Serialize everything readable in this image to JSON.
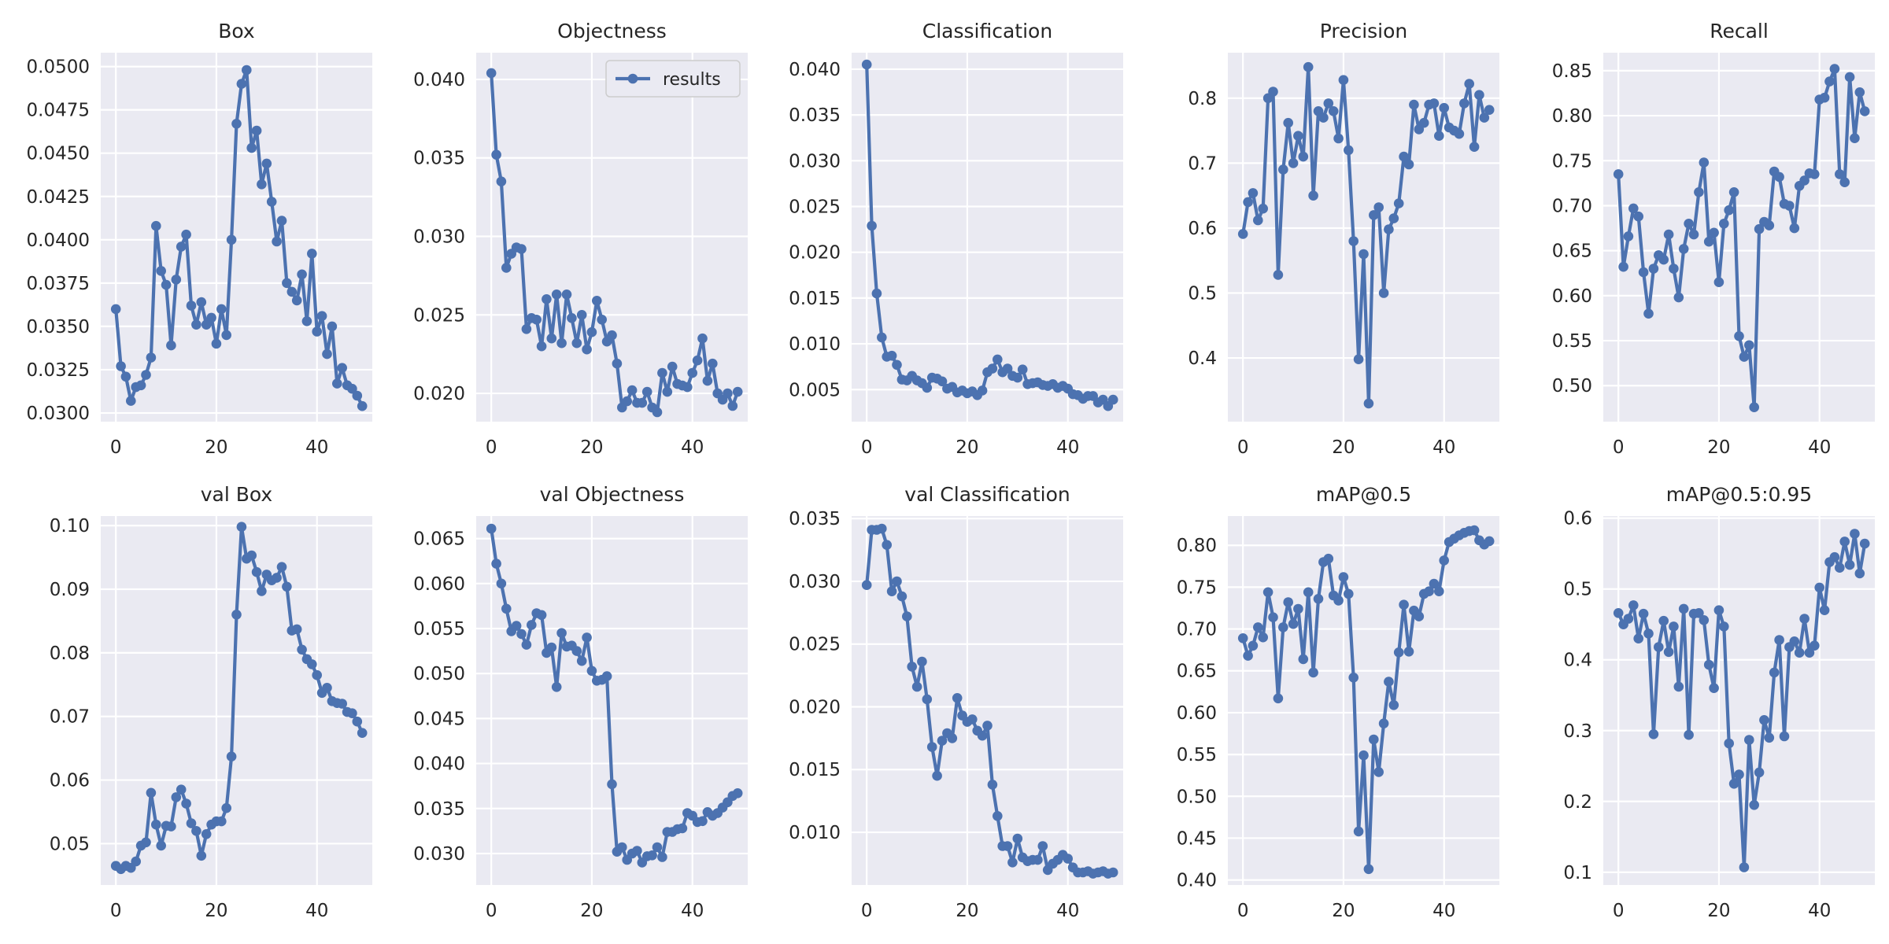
{
  "series_color": "#4c72b0",
  "background_color": "#eaeaf2",
  "grid_color": "#ffffff",
  "chart_data": [
    {
      "type": "line",
      "title": "Box",
      "series_name": "results",
      "legend": null,
      "xlim": [
        -3,
        51
      ],
      "ylim": [
        0.0295,
        0.0508
      ],
      "xticks": [
        0,
        20,
        40
      ],
      "xtick_labels": [
        "0",
        "20",
        "40"
      ],
      "yticks": [
        0.03,
        0.0325,
        0.035,
        0.0375,
        0.04,
        0.0425,
        0.045,
        0.0475,
        0.05
      ],
      "ytick_labels": [
        "0.0300",
        "0.0325",
        "0.0350",
        "0.0375",
        "0.0400",
        "0.0425",
        "0.0450",
        "0.0475",
        "0.0500"
      ],
      "values": [
        0.036,
        0.0327,
        0.0321,
        0.0307,
        0.0315,
        0.0316,
        0.0322,
        0.0332,
        0.0408,
        0.0382,
        0.0374,
        0.0339,
        0.0377,
        0.0396,
        0.0403,
        0.0362,
        0.0351,
        0.0364,
        0.0351,
        0.0355,
        0.034,
        0.036,
        0.0345,
        0.04,
        0.0467,
        0.049,
        0.0498,
        0.0453,
        0.0463,
        0.0432,
        0.0444,
        0.0422,
        0.0399,
        0.0411,
        0.0375,
        0.037,
        0.0365,
        0.038,
        0.0353,
        0.0392,
        0.0347,
        0.0356,
        0.0334,
        0.035,
        0.0317,
        0.0326,
        0.0316,
        0.0314,
        0.031,
        0.0304
      ]
    },
    {
      "type": "line",
      "title": "Objectness",
      "series_name": "results",
      "legend": "top-right",
      "xlim": [
        -3,
        51
      ],
      "ylim": [
        0.0182,
        0.0417
      ],
      "xticks": [
        0,
        20,
        40
      ],
      "xtick_labels": [
        "0",
        "20",
        "40"
      ],
      "yticks": [
        0.02,
        0.025,
        0.03,
        0.035,
        0.04
      ],
      "ytick_labels": [
        "0.020",
        "0.025",
        "0.030",
        "0.035",
        "0.040"
      ],
      "values": [
        0.0404,
        0.0352,
        0.0335,
        0.028,
        0.0289,
        0.0293,
        0.0292,
        0.0241,
        0.0248,
        0.0247,
        0.023,
        0.026,
        0.0235,
        0.0263,
        0.0232,
        0.0263,
        0.0248,
        0.0232,
        0.025,
        0.0228,
        0.0239,
        0.0259,
        0.0247,
        0.0233,
        0.0237,
        0.0219,
        0.0191,
        0.0195,
        0.0202,
        0.0194,
        0.0194,
        0.0201,
        0.0191,
        0.0188,
        0.0213,
        0.0201,
        0.0217,
        0.0206,
        0.0205,
        0.0204,
        0.0213,
        0.0221,
        0.0235,
        0.0208,
        0.0219,
        0.02,
        0.0196,
        0.02,
        0.0192,
        0.0201
      ]
    },
    {
      "type": "line",
      "title": "Classification",
      "series_name": "results",
      "legend": null,
      "xlim": [
        -3,
        51
      ],
      "ylim": [
        0.0015,
        0.0418
      ],
      "xticks": [
        0,
        20,
        40
      ],
      "xtick_labels": [
        "0",
        "20",
        "40"
      ],
      "yticks": [
        0.005,
        0.01,
        0.015,
        0.02,
        0.025,
        0.03,
        0.035,
        0.04
      ],
      "ytick_labels": [
        "0.005",
        "0.010",
        "0.015",
        "0.020",
        "0.025",
        "0.030",
        "0.035",
        "0.040"
      ],
      "values": [
        0.0405,
        0.0229,
        0.0155,
        0.0107,
        0.0086,
        0.0087,
        0.0077,
        0.0061,
        0.006,
        0.0065,
        0.006,
        0.0057,
        0.0052,
        0.0063,
        0.0062,
        0.0059,
        0.0051,
        0.0053,
        0.0047,
        0.0049,
        0.0046,
        0.0048,
        0.0044,
        0.0049,
        0.0069,
        0.0073,
        0.0083,
        0.0069,
        0.0073,
        0.0065,
        0.0063,
        0.0072,
        0.0056,
        0.0057,
        0.0058,
        0.0055,
        0.0054,
        0.0056,
        0.0052,
        0.0054,
        0.0051,
        0.0045,
        0.0044,
        0.004,
        0.0043,
        0.0043,
        0.0036,
        0.0039,
        0.0032,
        0.0039
      ]
    },
    {
      "type": "line",
      "title": "Precision",
      "series_name": "results",
      "legend": null,
      "xlim": [
        -3,
        51
      ],
      "ylim": [
        0.302,
        0.87
      ],
      "xticks": [
        0,
        20,
        40
      ],
      "xtick_labels": [
        "0",
        "20",
        "40"
      ],
      "yticks": [
        0.4,
        0.5,
        0.6,
        0.7,
        0.8
      ],
      "ytick_labels": [
        "0.4",
        "0.5",
        "0.6",
        "0.7",
        "0.8"
      ],
      "values": [
        0.591,
        0.64,
        0.654,
        0.612,
        0.63,
        0.8,
        0.81,
        0.528,
        0.69,
        0.762,
        0.7,
        0.742,
        0.71,
        0.848,
        0.65,
        0.78,
        0.77,
        0.792,
        0.78,
        0.738,
        0.828,
        0.72,
        0.58,
        0.398,
        0.56,
        0.33,
        0.62,
        0.632,
        0.5,
        0.598,
        0.615,
        0.638,
        0.71,
        0.698,
        0.79,
        0.752,
        0.762,
        0.79,
        0.792,
        0.742,
        0.785,
        0.755,
        0.75,
        0.745,
        0.792,
        0.822,
        0.725,
        0.805,
        0.77,
        0.782
      ]
    },
    {
      "type": "line",
      "title": "Recall",
      "series_name": "results",
      "legend": null,
      "xlim": [
        -3,
        51
      ],
      "ylim": [
        0.46,
        0.87
      ],
      "xticks": [
        0,
        20,
        40
      ],
      "xtick_labels": [
        "0",
        "20",
        "40"
      ],
      "yticks": [
        0.5,
        0.55,
        0.6,
        0.65,
        0.7,
        0.75,
        0.8,
        0.85
      ],
      "ytick_labels": [
        "0.50",
        "0.55",
        "0.60",
        "0.65",
        "0.70",
        "0.75",
        "0.80",
        "0.85"
      ],
      "values": [
        0.735,
        0.632,
        0.666,
        0.697,
        0.688,
        0.626,
        0.58,
        0.63,
        0.645,
        0.64,
        0.668,
        0.63,
        0.598,
        0.652,
        0.68,
        0.668,
        0.715,
        0.748,
        0.66,
        0.67,
        0.615,
        0.68,
        0.695,
        0.715,
        0.555,
        0.532,
        0.545,
        0.476,
        0.674,
        0.682,
        0.678,
        0.738,
        0.732,
        0.702,
        0.7,
        0.675,
        0.722,
        0.728,
        0.736,
        0.735,
        0.818,
        0.82,
        0.838,
        0.852,
        0.735,
        0.726,
        0.843,
        0.775,
        0.826,
        0.805
      ]
    },
    {
      "type": "line",
      "title": "val Box",
      "series_name": "results",
      "legend": null,
      "xlim": [
        -3,
        51
      ],
      "ylim": [
        0.0435,
        0.1015
      ],
      "xticks": [
        0,
        20,
        40
      ],
      "xtick_labels": [
        "0",
        "20",
        "40"
      ],
      "yticks": [
        0.05,
        0.06,
        0.07,
        0.08,
        0.09,
        0.1
      ],
      "ytick_labels": [
        "0.05",
        "0.06",
        "0.07",
        "0.08",
        "0.09",
        "0.10"
      ],
      "values": [
        0.0465,
        0.046,
        0.0465,
        0.0462,
        0.0472,
        0.0497,
        0.0502,
        0.058,
        0.053,
        0.0497,
        0.0528,
        0.0527,
        0.0573,
        0.0585,
        0.0563,
        0.0532,
        0.052,
        0.0481,
        0.0515,
        0.053,
        0.0535,
        0.0535,
        0.0556,
        0.0637,
        0.086,
        0.0998,
        0.0948,
        0.0953,
        0.0927,
        0.0897,
        0.0923,
        0.0914,
        0.0918,
        0.0935,
        0.0904,
        0.0835,
        0.0837,
        0.0805,
        0.079,
        0.0782,
        0.0765,
        0.0737,
        0.0745,
        0.0724,
        0.0721,
        0.072,
        0.0707,
        0.0705,
        0.0692,
        0.0674
      ]
    },
    {
      "type": "line",
      "title": "val Objectness",
      "series_name": "results",
      "legend": null,
      "xlim": [
        -3,
        51
      ],
      "ylim": [
        0.0265,
        0.0675
      ],
      "xticks": [
        0,
        20,
        40
      ],
      "xtick_labels": [
        "0",
        "20",
        "40"
      ],
      "yticks": [
        0.03,
        0.035,
        0.04,
        0.045,
        0.05,
        0.055,
        0.06,
        0.065
      ],
      "ytick_labels": [
        "0.030",
        "0.035",
        "0.040",
        "0.045",
        "0.050",
        "0.055",
        "0.060",
        "0.065"
      ],
      "values": [
        0.0661,
        0.0622,
        0.06,
        0.0572,
        0.0547,
        0.0553,
        0.0544,
        0.0532,
        0.0554,
        0.0567,
        0.0565,
        0.0523,
        0.0529,
        0.0485,
        0.0545,
        0.053,
        0.0531,
        0.0525,
        0.0514,
        0.054,
        0.0503,
        0.0492,
        0.0493,
        0.0497,
        0.0377,
        0.0302,
        0.0307,
        0.0293,
        0.03,
        0.0303,
        0.029,
        0.0297,
        0.0298,
        0.0307,
        0.0296,
        0.0324,
        0.0324,
        0.0327,
        0.0328,
        0.0345,
        0.0342,
        0.0335,
        0.0336,
        0.0346,
        0.0342,
        0.0345,
        0.0351,
        0.0357,
        0.0364,
        0.0367
      ]
    },
    {
      "type": "line",
      "title": "val Classification",
      "series_name": "results",
      "legend": null,
      "xlim": [
        -3,
        51
      ],
      "ylim": [
        0.0058,
        0.0352
      ],
      "xticks": [
        0,
        20,
        40
      ],
      "xtick_labels": [
        "0",
        "20",
        "40"
      ],
      "yticks": [
        0.01,
        0.015,
        0.02,
        0.025,
        0.03,
        0.035
      ],
      "ytick_labels": [
        "0.010",
        "0.015",
        "0.020",
        "0.025",
        "0.030",
        "0.035"
      ],
      "values": [
        0.0297,
        0.0341,
        0.0341,
        0.0342,
        0.0329,
        0.0292,
        0.03,
        0.0288,
        0.0272,
        0.0232,
        0.0216,
        0.0236,
        0.0206,
        0.0168,
        0.0145,
        0.0173,
        0.0179,
        0.0175,
        0.0207,
        0.0193,
        0.0188,
        0.019,
        0.0181,
        0.0177,
        0.0185,
        0.0138,
        0.0113,
        0.0089,
        0.0089,
        0.0076,
        0.0095,
        0.008,
        0.0077,
        0.0078,
        0.0078,
        0.0089,
        0.007,
        0.0075,
        0.0078,
        0.0082,
        0.0079,
        0.0072,
        0.0068,
        0.0068,
        0.0069,
        0.0067,
        0.0068,
        0.0069,
        0.0067,
        0.0068
      ]
    },
    {
      "type": "line",
      "title": "mAP@0.5",
      "series_name": "results",
      "legend": null,
      "xlim": [
        -3,
        51
      ],
      "ylim": [
        0.394,
        0.835
      ],
      "xticks": [
        0,
        20,
        40
      ],
      "xtick_labels": [
        "0",
        "20",
        "40"
      ],
      "yticks": [
        0.4,
        0.45,
        0.5,
        0.55,
        0.6,
        0.65,
        0.7,
        0.75,
        0.8
      ],
      "ytick_labels": [
        "0.40",
        "0.45",
        "0.50",
        "0.55",
        "0.60",
        "0.65",
        "0.70",
        "0.75",
        "0.80"
      ],
      "values": [
        0.689,
        0.668,
        0.68,
        0.702,
        0.69,
        0.744,
        0.714,
        0.617,
        0.702,
        0.732,
        0.706,
        0.724,
        0.664,
        0.744,
        0.648,
        0.736,
        0.78,
        0.784,
        0.74,
        0.734,
        0.762,
        0.742,
        0.642,
        0.458,
        0.549,
        0.413,
        0.568,
        0.529,
        0.587,
        0.637,
        0.609,
        0.672,
        0.729,
        0.673,
        0.722,
        0.715,
        0.742,
        0.745,
        0.754,
        0.745,
        0.782,
        0.804,
        0.808,
        0.812,
        0.815,
        0.817,
        0.818,
        0.806,
        0.801,
        0.805
      ]
    },
    {
      "type": "line",
      "title": "mAP@0.5:0.95",
      "series_name": "results",
      "legend": null,
      "xlim": [
        -3,
        51
      ],
      "ylim": [
        0.082,
        0.603
      ],
      "xticks": [
        0,
        20,
        40
      ],
      "xtick_labels": [
        "0",
        "20",
        "40"
      ],
      "yticks": [
        0.1,
        0.2,
        0.3,
        0.4,
        0.5,
        0.6
      ],
      "ytick_labels": [
        "0.1",
        "0.2",
        "0.3",
        "0.4",
        "0.5",
        "0.6"
      ],
      "values": [
        0.466,
        0.45,
        0.458,
        0.477,
        0.43,
        0.465,
        0.437,
        0.295,
        0.418,
        0.455,
        0.411,
        0.447,
        0.362,
        0.472,
        0.294,
        0.465,
        0.466,
        0.456,
        0.393,
        0.36,
        0.47,
        0.447,
        0.282,
        0.225,
        0.238,
        0.107,
        0.287,
        0.195,
        0.241,
        0.315,
        0.29,
        0.382,
        0.428,
        0.292,
        0.418,
        0.426,
        0.41,
        0.458,
        0.41,
        0.42,
        0.502,
        0.47,
        0.538,
        0.545,
        0.53,
        0.567,
        0.534,
        0.578,
        0.522,
        0.564
      ]
    }
  ]
}
